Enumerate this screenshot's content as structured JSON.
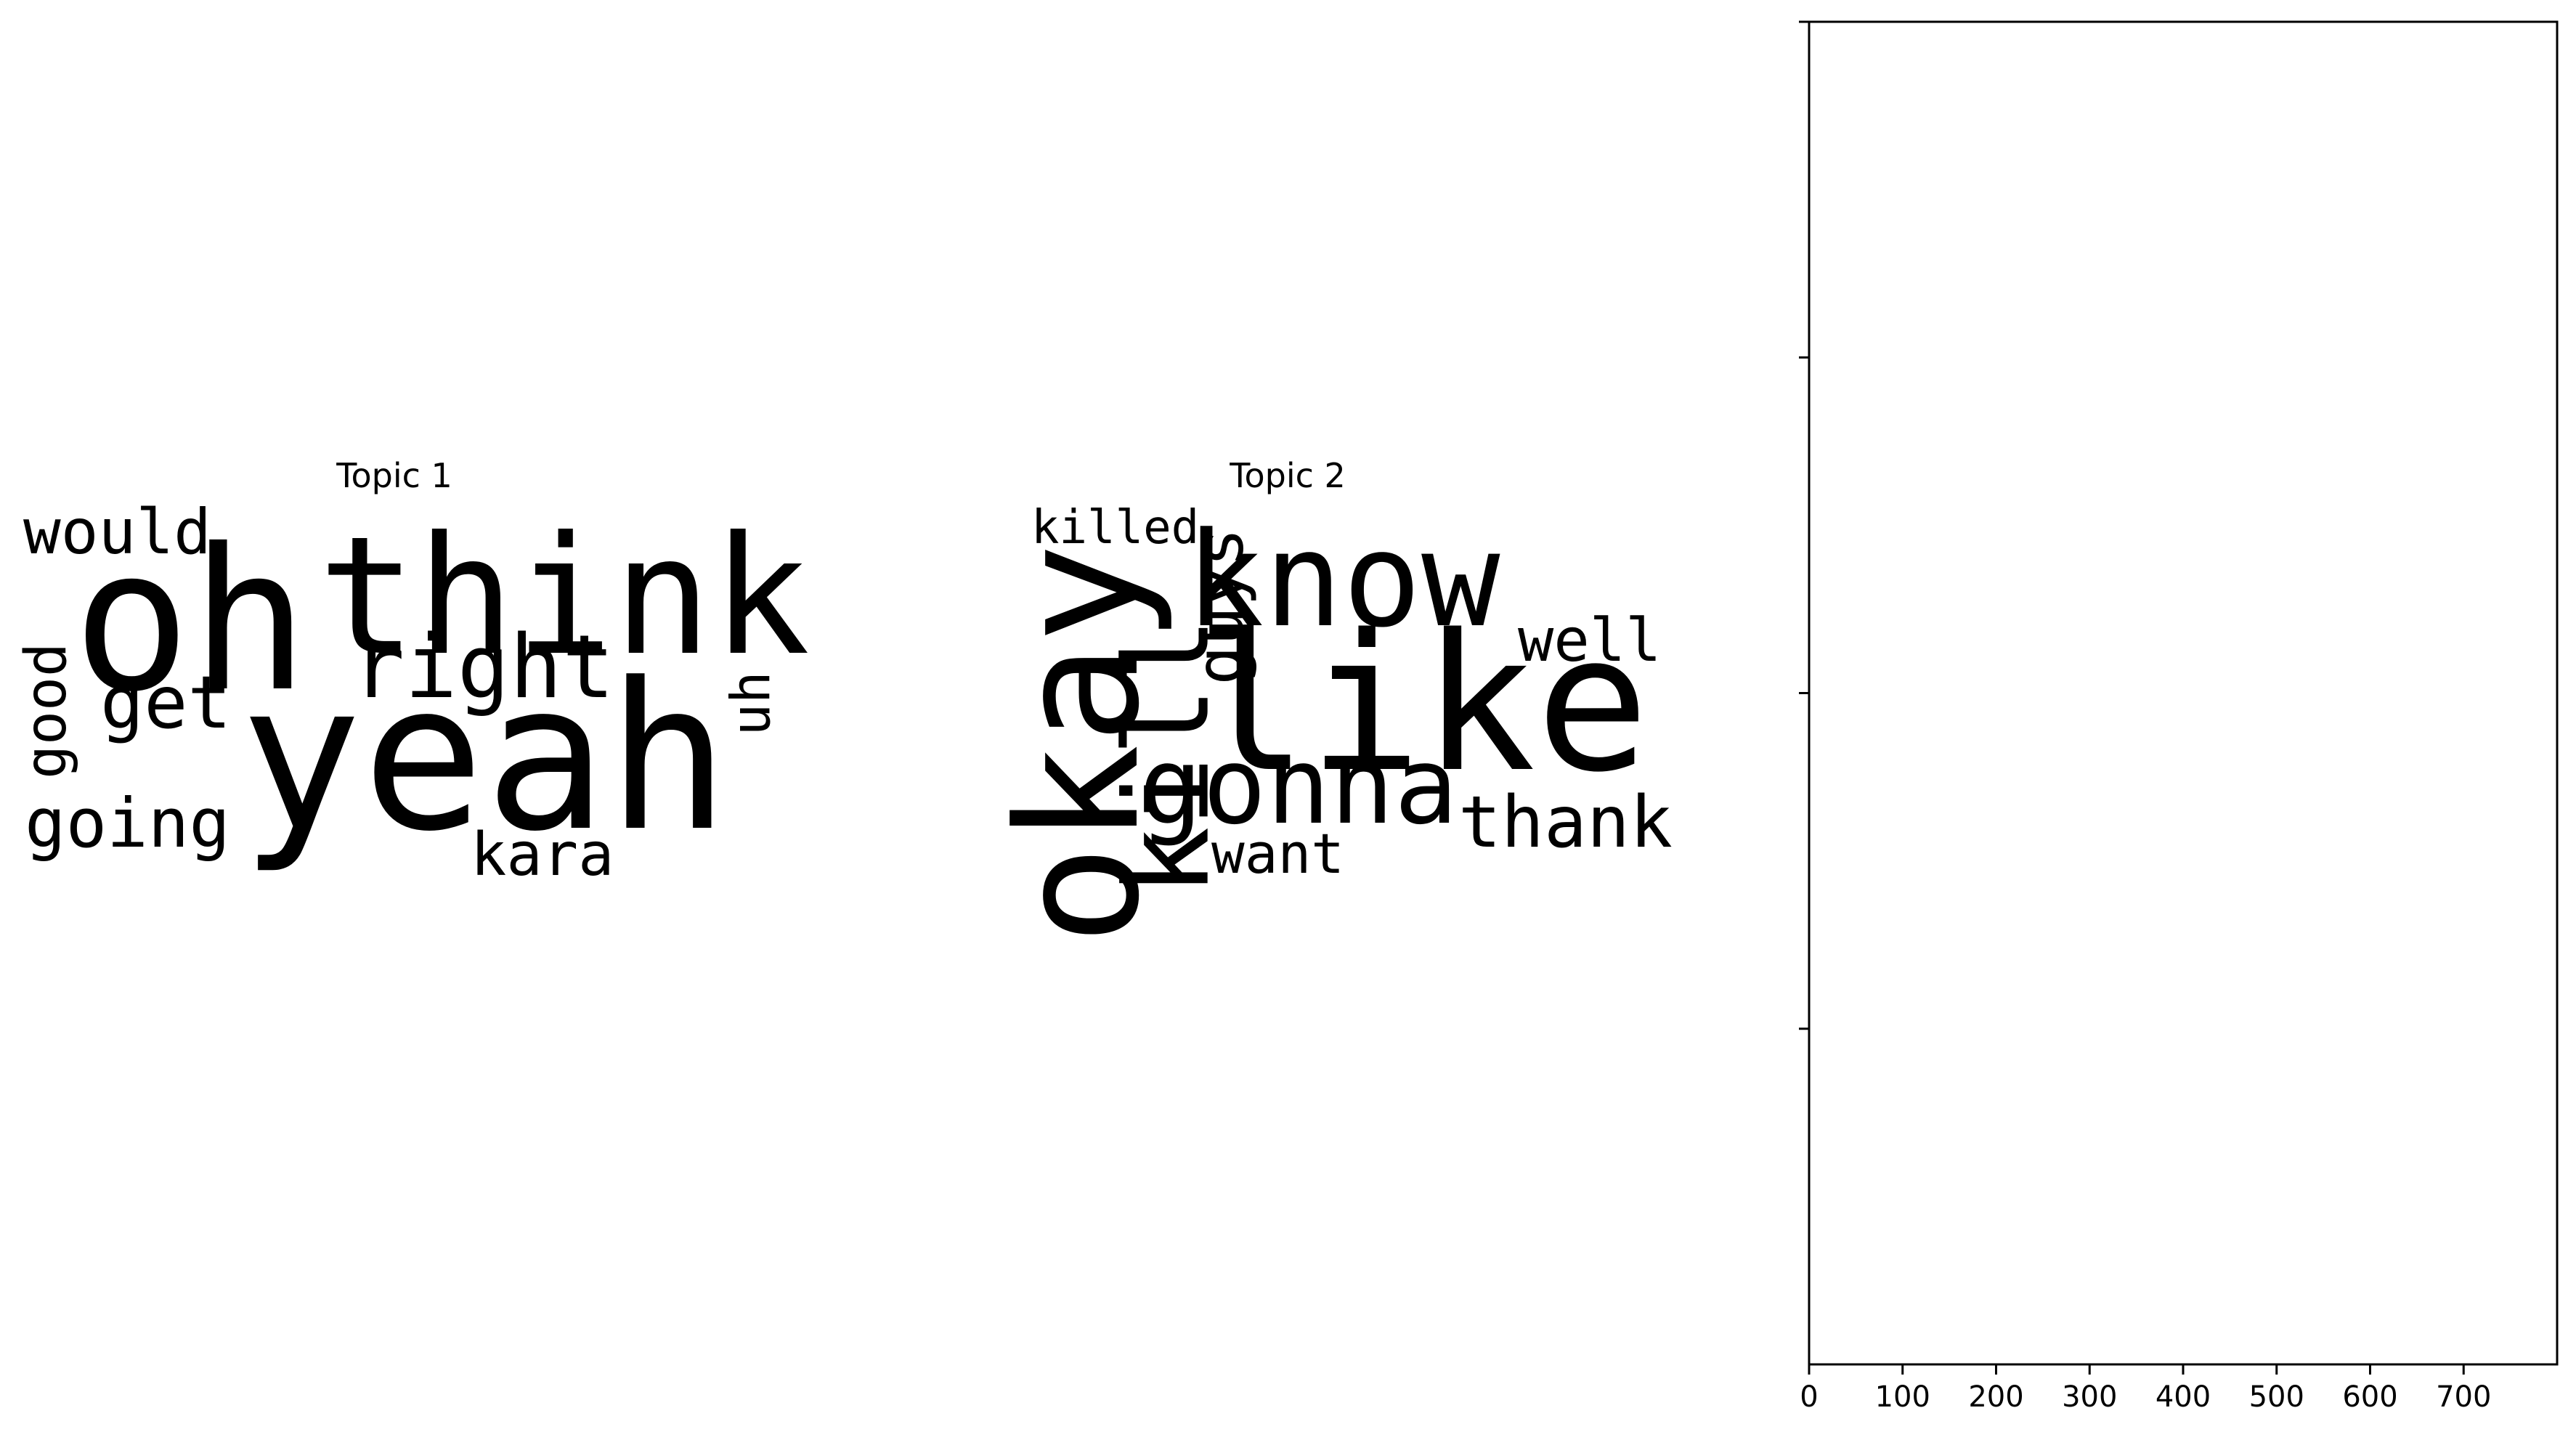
{
  "chart_data": [
    {
      "type": "wordcloud",
      "title": "Topic 1",
      "words": [
        {
          "text": "yeah",
          "weight": 1.0,
          "color": "#2a788e",
          "rotate": false
        },
        {
          "text": "oh",
          "weight": 0.95,
          "color": "#22a884",
          "rotate": false
        },
        {
          "text": "think",
          "weight": 0.85,
          "color": "#bddf26",
          "rotate": false
        },
        {
          "text": "right",
          "weight": 0.5,
          "color": "#44bf70",
          "rotate": false
        },
        {
          "text": "get",
          "weight": 0.42,
          "color": "#35b779",
          "rotate": false
        },
        {
          "text": "would",
          "weight": 0.36,
          "color": "#3b528b",
          "rotate": false
        },
        {
          "text": "going",
          "weight": 0.36,
          "color": "#c8e020",
          "rotate": false
        },
        {
          "text": "good",
          "weight": 0.34,
          "color": "#482173",
          "rotate": true
        },
        {
          "text": "kara",
          "weight": 0.33,
          "color": "#5ec962",
          "rotate": false
        },
        {
          "text": "uh",
          "weight": 0.31,
          "color": "#46337e",
          "rotate": true
        }
      ]
    },
    {
      "type": "wordcloud",
      "title": "Topic 2",
      "words": [
        {
          "text": "like",
          "weight": 1.0,
          "color": "#21a685",
          "rotate": false
        },
        {
          "text": "okay",
          "weight": 0.95,
          "color": "#e7e419",
          "rotate": true
        },
        {
          "text": "know",
          "weight": 0.8,
          "color": "#5ec962",
          "rotate": false
        },
        {
          "text": "kill",
          "weight": 0.7,
          "color": "#482878",
          "rotate": true
        },
        {
          "text": "gonna",
          "weight": 0.65,
          "color": "#2c728e",
          "rotate": false
        },
        {
          "text": "thank",
          "weight": 0.45,
          "color": "#dde318",
          "rotate": false
        },
        {
          "text": "guys",
          "weight": 0.42,
          "color": "#443983",
          "rotate": true
        },
        {
          "text": "well",
          "weight": 0.38,
          "color": "#472d7b",
          "rotate": false
        },
        {
          "text": "want",
          "weight": 0.35,
          "color": "#35b779",
          "rotate": false
        },
        {
          "text": "killed",
          "weight": 0.3,
          "color": "#31688e",
          "rotate": false
        }
      ]
    },
    {
      "type": "bar",
      "title": "",
      "xlabel": "",
      "ylabel": "",
      "xticks": [
        0,
        100,
        200,
        300,
        400,
        500,
        600,
        700
      ],
      "xlim": [
        0,
        800
      ],
      "yticks": [
        "",
        "",
        "",
        ""
      ],
      "values": []
    }
  ]
}
